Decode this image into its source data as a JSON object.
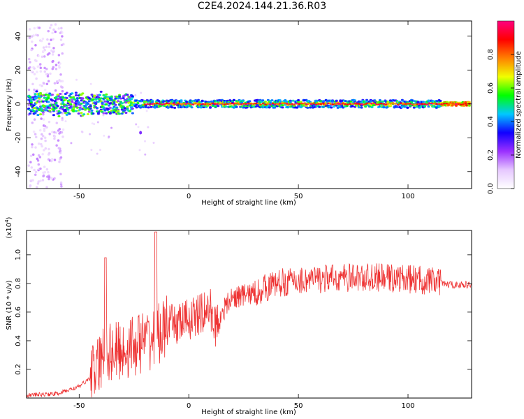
{
  "title": "C2E4.2024.144.21.36.R03",
  "chart_data": [
    {
      "type": "heatmap",
      "xlabel": "Height of straight line (km)",
      "ylabel": "Frequency (Hz)",
      "xlim": [
        -74,
        129
      ],
      "ylim": [
        -50,
        49
      ],
      "xticks": [
        "-50",
        "0",
        "50",
        "100"
      ],
      "yticks": [
        "-40",
        "-20",
        "0",
        "20",
        "40"
      ],
      "colorbar": {
        "label": "Normalized spectral amplitude",
        "ticks": [
          "0.0",
          "0.2",
          "0.4",
          "0.6",
          "0.8"
        ],
        "range": [
          0,
          1
        ],
        "colors": [
          "#ffffff",
          "#e6c8ff",
          "#9b30ff",
          "#1000ff",
          "#00c8ff",
          "#00ff00",
          "#f0ff00",
          "#ff8000",
          "#ff0000",
          "#ff0080"
        ]
      },
      "grid": false
    },
    {
      "type": "line",
      "xlabel": "Height of straight line (km)",
      "ylabel": "SNR (10 * v/v)",
      "y_multiplier": "(x10",
      "y_multiplier_exp": "4",
      "y_multiplier_close": ")",
      "xlim": [
        -74,
        129
      ],
      "ylim": [
        0,
        1.17
      ],
      "xticks": [
        "-50",
        "0",
        "50",
        "100"
      ],
      "yticks": [
        "0.2",
        "0.4",
        "0.6",
        "0.8",
        "1.0"
      ],
      "series": [
        {
          "color": "#ee3333",
          "x": [
            -74,
            -60,
            -50,
            -45,
            -40,
            -38,
            -35,
            -30,
            -25,
            -20,
            -16,
            -15,
            -13,
            -10,
            -5,
            0,
            5,
            7,
            10,
            11,
            12,
            15,
            20,
            25,
            30,
            35,
            40,
            50,
            60,
            70,
            80,
            90,
            100,
            110,
            115,
            120,
            129
          ],
          "y": [
            0.02,
            0.03,
            0.08,
            0.14,
            0.25,
            0.34,
            0.32,
            0.33,
            0.37,
            0.4,
            0.42,
            0.44,
            0.45,
            0.5,
            0.52,
            0.55,
            0.58,
            0.6,
            0.62,
            0.55,
            0.5,
            0.6,
            0.7,
            0.72,
            0.73,
            0.77,
            0.8,
            0.82,
            0.83,
            0.84,
            0.84,
            0.84,
            0.83,
            0.82,
            0.8,
            0.79,
            0.79
          ]
        }
      ],
      "grid": false
    }
  ]
}
